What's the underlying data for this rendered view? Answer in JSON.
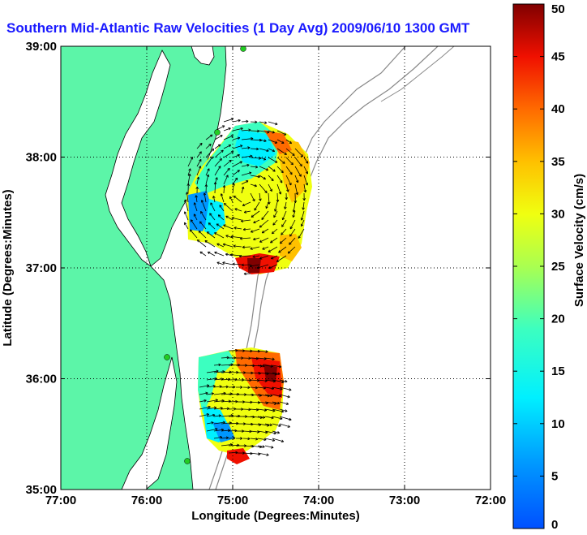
{
  "chart_data": {
    "type": "heatmap",
    "title": "Southern Mid-Atlantic Raw Velocities (1 Day Avg) 2009/06/10 1300 GMT",
    "xlabel": "Longitude (Degrees:Minutes)",
    "ylabel": "Latitude (Degrees:Minutes)",
    "xlim": [
      -77,
      -72
    ],
    "ylim": [
      35,
      39
    ],
    "x_ticks": [
      {
        "value": -77,
        "label": "77:00"
      },
      {
        "value": -76,
        "label": "76:00"
      },
      {
        "value": -75,
        "label": "75:00"
      },
      {
        "value": -74,
        "label": "74:00"
      },
      {
        "value": -73,
        "label": "73:00"
      },
      {
        "value": -72,
        "label": "72:00"
      }
    ],
    "y_ticks": [
      {
        "value": 35,
        "label": "35:00"
      },
      {
        "value": 36,
        "label": "36:00"
      },
      {
        "value": 37,
        "label": "37:00"
      },
      {
        "value": 38,
        "label": "38:00"
      },
      {
        "value": 39,
        "label": "39:00"
      }
    ],
    "grid": true,
    "colorbar": {
      "label": "Surface Velocity (cm/s)",
      "range": [
        0,
        50
      ],
      "ticks": [
        0,
        5,
        10,
        15,
        20,
        25,
        30,
        35,
        40,
        45,
        50
      ],
      "placement": "right",
      "colormap": "jet"
    },
    "colors": {
      "land": "#5cf5a8",
      "coast": "#000000",
      "bathymetry": "#888888",
      "arrows": "#000000",
      "title": "#1a1aff",
      "station": "#22cc22"
    },
    "regions": [
      {
        "name": "",
        "lon_range": [
          -75.5,
          -74.05
        ],
        "lat_range": [
          37.0,
          38.3
        ],
        "speed_estimate_cm_s": [
          5,
          50
        ]
      },
      {
        "name": "",
        "lon_range": [
          -75.5,
          -74.3
        ],
        "lat_range": [
          35.25,
          36.45
        ],
        "speed_estimate_cm_s": [
          10,
          45
        ]
      }
    ]
  }
}
